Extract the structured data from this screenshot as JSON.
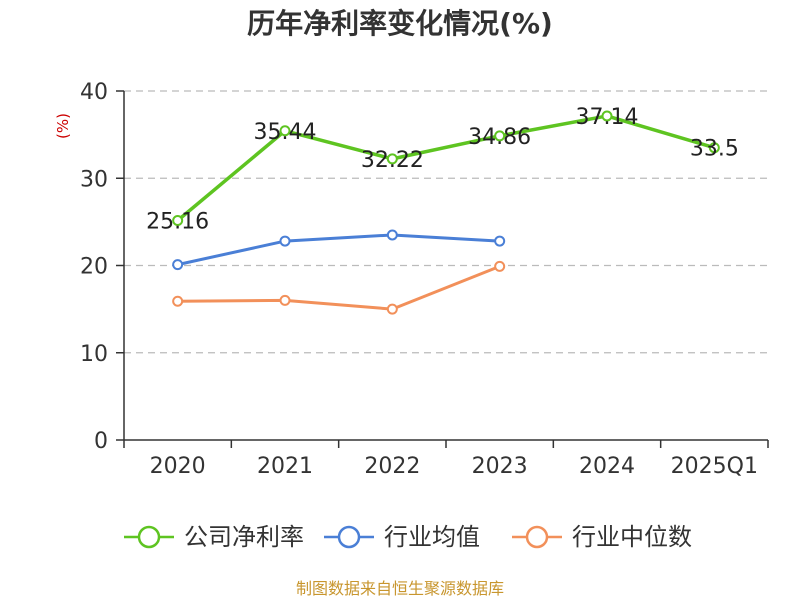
{
  "chart_data": {
    "type": "line",
    "title": "历年净利率变化情况(%)",
    "ylabel": "(%)",
    "xlabel": "",
    "categories": [
      "2020",
      "2021",
      "2022",
      "2023",
      "2024",
      "2025Q1"
    ],
    "ylim": [
      0,
      40
    ],
    "yticks": [
      0,
      10,
      20,
      30,
      40
    ],
    "grid": true,
    "legend_position": "bottom",
    "series": [
      {
        "name": "公司净利率",
        "color": "#5ec421",
        "values": [
          25.16,
          35.44,
          32.22,
          34.86,
          37.14,
          33.5
        ],
        "labels": [
          "25.16",
          "35.44",
          "32.22",
          "34.86",
          "37.14",
          "33.5"
        ]
      },
      {
        "name": "行业均值",
        "color": "#4a7fd6",
        "values": [
          20.1,
          22.8,
          23.5,
          22.8,
          null,
          null
        ]
      },
      {
        "name": "行业中位数",
        "color": "#f2905a",
        "values": [
          15.9,
          16.0,
          15.0,
          19.9,
          null,
          null
        ]
      }
    ]
  },
  "source": {
    "text": "制图数据来自恒生聚源数据库",
    "color": "#c8962e"
  },
  "axis_color": "#333333",
  "grid_color": "#bbbbbb",
  "ylabel_color": "#cc0000"
}
